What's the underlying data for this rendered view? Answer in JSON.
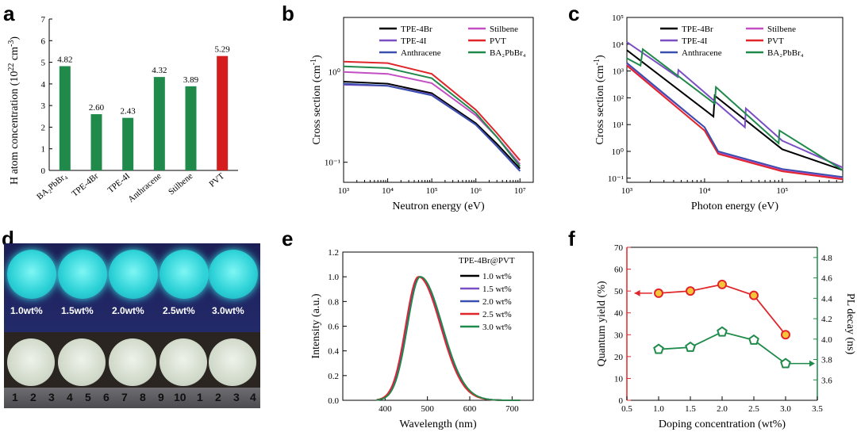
{
  "panels": {
    "a": "a",
    "b": "b",
    "c": "c",
    "d": "d",
    "e": "e",
    "f": "f"
  },
  "chart_data": [
    {
      "panel": "a",
      "type": "bar",
      "title": "",
      "ylabel_main": "H atom concentration (10",
      "ylabel_exp": "22",
      "ylabel_tail": " cm",
      "ylabel_exp2": "-3",
      "ylabel_close": ")",
      "ylim": [
        0,
        7
      ],
      "yticks": [
        "0",
        "1",
        "2",
        "3",
        "4",
        "5",
        "6",
        "7"
      ],
      "categories": [
        "BA2PbBr4",
        "TPE-4Br",
        "TPE-4I",
        "Anthracene",
        "Stilbene",
        "PVT"
      ],
      "category_labels": [
        "BA₂PbBr₄",
        "TPE-4Br",
        "TPE-4I",
        "Anthracene",
        "Stilbene",
        "PVT"
      ],
      "values": [
        4.82,
        2.6,
        2.43,
        4.32,
        3.89,
        5.29
      ],
      "value_labels": [
        "4.82",
        "2.60",
        "2.43",
        "4.32",
        "3.89",
        "5.29"
      ],
      "colors": [
        "#1f8a4a",
        "#1f8a4a",
        "#1f8a4a",
        "#1f8a4a",
        "#1f8a4a",
        "#d51d1d"
      ]
    },
    {
      "panel": "b",
      "type": "line",
      "xscale": "log",
      "yscale": "log",
      "xlabel": "Neutron energy (eV)",
      "ylabel": "Cross section (cm",
      "ylabel_exp": "-1",
      "ylabel_close": ")",
      "xlim": [
        1000,
        20000000
      ],
      "ylim": [
        0.06,
        4
      ],
      "xticks": [
        "10³",
        "10⁴",
        "10⁵",
        "10⁶",
        "10⁷"
      ],
      "yticks": [
        "10⁻¹",
        "10⁰"
      ],
      "series": [
        {
          "name": "TPE-4Br",
          "color": "#000000",
          "x": [
            1000,
            10000,
            100000,
            1000000,
            3000000,
            10000000
          ],
          "y": [
            0.78,
            0.74,
            0.58,
            0.27,
            0.16,
            0.085
          ]
        },
        {
          "name": "Stilbene",
          "color": "#c44fc4",
          "x": [
            1000,
            10000,
            100000,
            1000000,
            3000000,
            10000000
          ],
          "y": [
            1.0,
            0.95,
            0.75,
            0.33,
            0.19,
            0.095
          ]
        },
        {
          "name": "TPE-4I",
          "color": "#7b4fc4",
          "x": [
            1000,
            10000,
            100000,
            1000000,
            3000000,
            10000000
          ],
          "y": [
            0.72,
            0.7,
            0.56,
            0.26,
            0.15,
            0.08
          ]
        },
        {
          "name": "PVT",
          "color": "#e0262b",
          "x": [
            1000,
            10000,
            100000,
            1000000,
            3000000,
            10000000
          ],
          "y": [
            1.3,
            1.25,
            0.95,
            0.38,
            0.21,
            0.105
          ]
        },
        {
          "name": "Anthracene",
          "color": "#3a4fae",
          "x": [
            1000,
            10000,
            100000,
            1000000,
            3000000,
            10000000
          ],
          "y": [
            0.74,
            0.7,
            0.55,
            0.26,
            0.15,
            0.08
          ]
        },
        {
          "name": "BA2PbBr4",
          "label": "BA₂PbBr₄",
          "color": "#1f8a4a",
          "x": [
            1000,
            10000,
            100000,
            1000000,
            3000000,
            10000000
          ],
          "y": [
            1.15,
            1.1,
            0.85,
            0.35,
            0.19,
            0.09
          ]
        }
      ]
    },
    {
      "panel": "c",
      "type": "line",
      "xscale": "log",
      "yscale": "log",
      "xlabel": "Photon energy (eV)",
      "ylabel": "Cross section (cm",
      "ylabel_exp": "-1",
      "ylabel_close": ")",
      "xlim": [
        1000,
        600000
      ],
      "ylim": [
        0.07,
        100000
      ],
      "xticks": [
        "10³",
        "10⁴",
        "10⁵"
      ],
      "yticks": [
        "10⁻¹",
        "10⁰",
        "10¹",
        "10²",
        "10³",
        "10⁴",
        "10⁵"
      ],
      "series": [
        {
          "name": "TPE-4Br",
          "color": "#000000",
          "x": [
            1000,
            13000,
            13500,
            100000,
            600000
          ],
          "y": [
            6000,
            20,
            120,
            1.2,
            0.2
          ]
        },
        {
          "name": "Stilbene",
          "color": "#c44fc4",
          "x": [
            1000,
            10000,
            15000,
            100000,
            600000
          ],
          "y": [
            1800,
            8,
            0.9,
            0.2,
            0.1
          ]
        },
        {
          "name": "TPE-4I",
          "color": "#7b4fc4",
          "x": [
            1000,
            4500,
            4600,
            33000,
            34000,
            100000,
            600000
          ],
          "y": [
            12000,
            600,
            1100,
            8,
            40,
            2.5,
            0.25
          ]
        },
        {
          "name": "PVT",
          "color": "#e0262b",
          "x": [
            1000,
            10000,
            15000,
            100000,
            600000
          ],
          "y": [
            1600,
            6,
            0.8,
            0.18,
            0.09
          ]
        },
        {
          "name": "Anthracene",
          "color": "#3a4fae",
          "x": [
            1000,
            10000,
            15000,
            100000,
            600000
          ],
          "y": [
            2000,
            8,
            1.0,
            0.22,
            0.11
          ]
        },
        {
          "name": "BA2PbBr4",
          "label": "BA₂PbBr₄",
          "color": "#1f8a4a",
          "x": [
            1000,
            1500,
            1600,
            13500,
            14000,
            90000,
            92000,
            600000
          ],
          "y": [
            3000,
            1600,
            6500,
            60,
            250,
            2,
            6,
            0.2
          ]
        }
      ]
    },
    {
      "panel": "e",
      "type": "line",
      "title": "TPE-4Br@PVT",
      "xlabel": "Wavelength (nm)",
      "ylabel": "Intensity (a.u.)",
      "xlim": [
        300,
        750
      ],
      "ylim": [
        0,
        1.2
      ],
      "xticks": [
        "400",
        "500",
        "600",
        "700"
      ],
      "yticks": [
        "0.0",
        "0.2",
        "0.4",
        "0.6",
        "0.8",
        "1.0",
        "1.2"
      ],
      "peak_nm": 480,
      "series": [
        {
          "name": "1.0 wt%",
          "color": "#000000"
        },
        {
          "name": "1.5 wt%",
          "color": "#7b4fc4"
        },
        {
          "name": "2.0 wt%",
          "color": "#3a4fae"
        },
        {
          "name": "2.5 wt%",
          "color": "#e0262b"
        },
        {
          "name": "3.0 wt%",
          "color": "#1f8a4a"
        }
      ]
    },
    {
      "panel": "f",
      "type": "scatter",
      "xlabel": "Doping concentration (wt%)",
      "ylabel_left": "Quantum yield (%)",
      "ylabel_right": "PL decay (ns)",
      "xlim": [
        0.5,
        3.5
      ],
      "ylim_left": [
        0,
        70
      ],
      "ylim_right": [
        3.4,
        4.9
      ],
      "xticks": [
        "0.5",
        "1.0",
        "1.5",
        "2.0",
        "2.5",
        "3.0",
        "3.5"
      ],
      "yticks_left": [
        "0",
        "10",
        "20",
        "30",
        "40",
        "50",
        "60",
        "70"
      ],
      "yticks_right": [
        "3.6",
        "3.8",
        "4.0",
        "4.2",
        "4.4",
        "4.6",
        "4.8"
      ],
      "x": [
        1.0,
        1.5,
        2.0,
        2.5,
        3.0
      ],
      "quantum_yield": [
        49,
        50,
        53,
        48,
        30
      ],
      "pl_decay": [
        3.9,
        3.92,
        4.07,
        3.99,
        3.76
      ],
      "qy_color": "#e0262b",
      "decay_color": "#1f8a4a"
    }
  ],
  "photo": {
    "uv_labels": [
      "1.0wt%",
      "1.5wt%",
      "2.0wt%",
      "2.5wt%",
      "3.0wt%"
    ],
    "ruler_numbers": [
      "1",
      "2",
      "3",
      "4",
      "5",
      "6",
      "7",
      "8",
      "9",
      "10",
      "1",
      "2",
      "3",
      "4"
    ]
  }
}
